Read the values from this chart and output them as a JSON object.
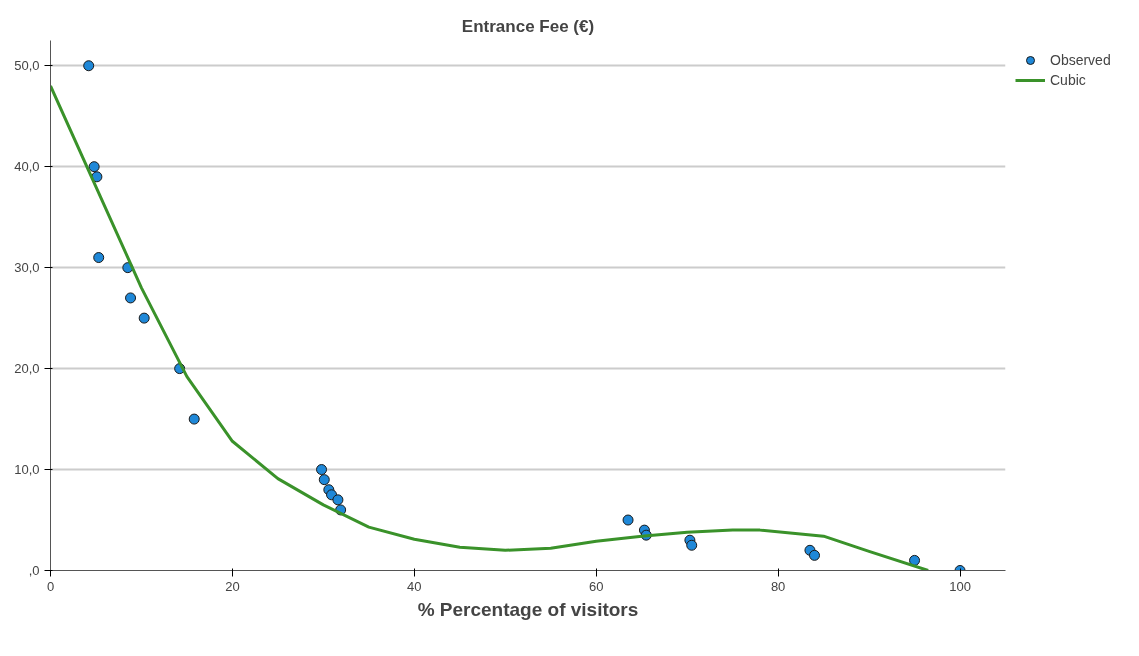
{
  "chart_data": {
    "type": "scatter",
    "title": "Entrance Fee (€)",
    "xlabel": "% Percentage of visitors",
    "xlim": [
      0,
      105
    ],
    "ylim": [
      0,
      52.5
    ],
    "xticks": [
      0,
      20,
      40,
      60,
      80,
      100
    ],
    "yticks": [
      {
        "value": 0,
        "label": ",0"
      },
      {
        "value": 10,
        "label": "10,0"
      },
      {
        "value": 20,
        "label": "20,0"
      },
      {
        "value": 30,
        "label": "30,0"
      },
      {
        "value": 40,
        "label": "40,0"
      },
      {
        "value": 50,
        "label": "50,0"
      }
    ],
    "grid": "y",
    "legend": "top right",
    "series": [
      {
        "name": "Observed",
        "type": "scatter",
        "marker": "circle",
        "color": "#1f88d8",
        "x": [
          4.2,
          4.8,
          5.1,
          5.3,
          8.5,
          8.8,
          10.3,
          14.2,
          15.8,
          29.8,
          30.1,
          30.6,
          30.9,
          31.6,
          31.9,
          63.5,
          65.3,
          65.5,
          70.3,
          70.5,
          83.5,
          84,
          95,
          100
        ],
        "values": [
          50,
          40,
          39,
          31,
          30,
          27,
          25,
          20,
          15,
          10,
          9,
          8,
          7.5,
          7,
          6,
          5,
          4,
          3.5,
          3,
          2.5,
          2,
          1.5,
          1,
          0
        ]
      },
      {
        "name": "Cubic",
        "type": "line",
        "marker": "none",
        "line_style": "solid",
        "color": "#3a922a",
        "x": [
          0,
          5,
          10,
          15,
          20,
          25,
          30,
          35,
          40,
          45,
          50,
          55,
          60,
          65,
          70,
          75,
          78,
          85,
          90,
          96.5
        ],
        "values": [
          48,
          38,
          28,
          19.2,
          12.8,
          9.1,
          6.5,
          4.3,
          3.1,
          2.3,
          2.0,
          2.2,
          2.9,
          3.4,
          3.8,
          4.0,
          4.0,
          3.4,
          1.9,
          0
        ]
      }
    ]
  }
}
